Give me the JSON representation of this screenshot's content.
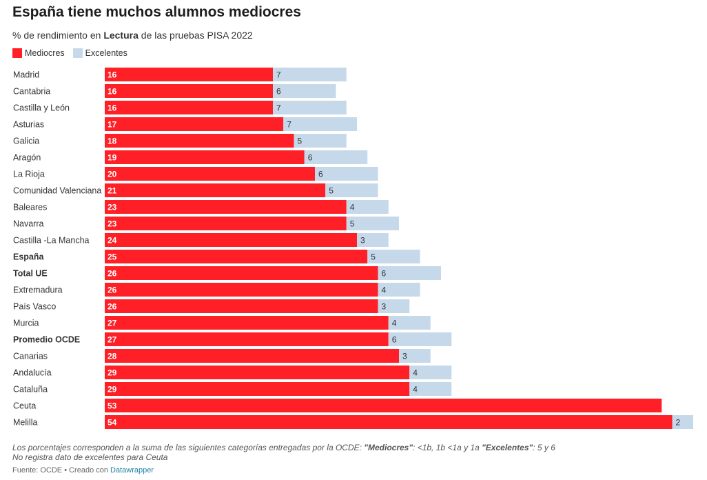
{
  "title": "España tiene muchos alumnos mediocres",
  "subtitle": {
    "before": "% de rendimiento en ",
    "bold": "Lectura",
    "after": " de las pruebas PISA 2022"
  },
  "colors": {
    "mediocres": "#ff1f26",
    "excelentes": "#c5d9ea"
  },
  "notes": {
    "line1_a": "Los porcentajes corresponden a la suma de las siguientes categorías entregadas por la OCDE: ",
    "line1_b": "\"Mediocres\"",
    "line1_c": ": <1b, 1b <1a y 1a ",
    "line1_d": "\"Excelentes\"",
    "line1_e": ": 5 y 6",
    "line2": "No registra dato de excelentes para Ceuta"
  },
  "source": {
    "prefix": "Fuente: OCDE • Creado con ",
    "tool": "Datawrapper"
  },
  "chart_data": {
    "type": "bar",
    "orientation": "horizontal",
    "stacked": true,
    "legend_position": "top-left",
    "categories": [
      "Madrid",
      "Cantabria",
      "Castilla y León",
      "Asturias",
      "Galicia",
      "Aragón",
      "La Rioja",
      "Comunidad Valenciana",
      "Baleares",
      "Navarra",
      "Castilla -La Mancha",
      "España",
      "Total UE",
      "Extremadura",
      "País Vasco",
      "Murcia",
      "Promedio OCDE",
      "Canarias",
      "Andalucía",
      "Cataluña",
      "Ceuta",
      "Melilla"
    ],
    "bold_categories": [
      "España",
      "Total UE",
      "Promedio OCDE"
    ],
    "series": [
      {
        "name": "Mediocres",
        "values": [
          16,
          16,
          16,
          17,
          18,
          19,
          20,
          21,
          23,
          23,
          24,
          25,
          26,
          26,
          26,
          27,
          27,
          28,
          29,
          29,
          53,
          54
        ]
      },
      {
        "name": "Excelentes",
        "values": [
          7,
          6,
          7,
          7,
          5,
          6,
          6,
          5,
          4,
          5,
          3,
          5,
          6,
          4,
          3,
          4,
          6,
          3,
          4,
          4,
          null,
          2
        ]
      }
    ],
    "xlim": [
      0,
      56
    ]
  }
}
